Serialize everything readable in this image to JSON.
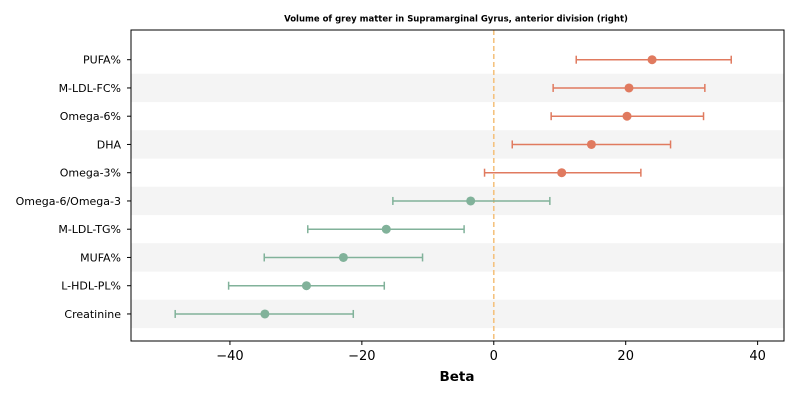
{
  "chart_data": {
    "type": "forest",
    "title": "Volume of grey matter in Supramarginal Gyrus, anterior division (right)",
    "xlabel": "Beta",
    "ylabel": "",
    "xlim": [
      -55,
      44
    ],
    "xticks": [
      -40,
      -20,
      0,
      20,
      40
    ],
    "xtick_labels": [
      "−40",
      "−20",
      "0",
      "20",
      "40"
    ],
    "reference_line": 0,
    "colors": {
      "positive": "#E07A5F",
      "negative": "#81B29A",
      "reference": "#F4C27F",
      "band": "#F4F4F4"
    },
    "rows": [
      {
        "label": "PUFA%",
        "beta": 24.0,
        "lower": 12.5,
        "upper": 36.0
      },
      {
        "label": "M-LDL-FC%",
        "beta": 20.5,
        "lower": 9.0,
        "upper": 32.0
      },
      {
        "label": "Omega-6%",
        "beta": 20.2,
        "lower": 8.7,
        "upper": 31.8
      },
      {
        "label": "DHA",
        "beta": 14.8,
        "lower": 2.8,
        "upper": 26.8
      },
      {
        "label": "Omega-3%",
        "beta": 10.3,
        "lower": -1.4,
        "upper": 22.3
      },
      {
        "label": "Omega-6/Omega-3",
        "beta": -3.5,
        "lower": -15.3,
        "upper": 8.5
      },
      {
        "label": "M-LDL-TG%",
        "beta": -16.3,
        "lower": -28.2,
        "upper": -4.5
      },
      {
        "label": "MUFA%",
        "beta": -22.8,
        "lower": -34.8,
        "upper": -10.8
      },
      {
        "label": "L-HDL-PL%",
        "beta": -28.4,
        "lower": -40.2,
        "upper": -16.6
      },
      {
        "label": "Creatinine",
        "beta": -34.7,
        "lower": -48.3,
        "upper": -21.3
      }
    ]
  }
}
